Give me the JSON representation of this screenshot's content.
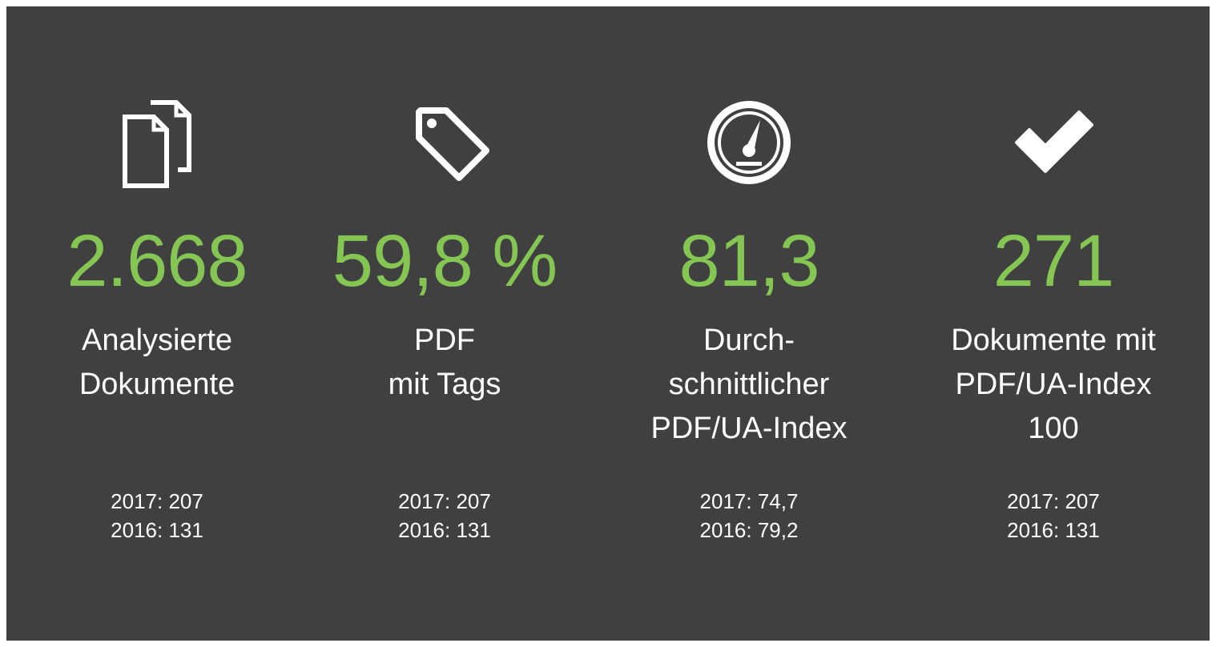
{
  "items": [
    {
      "value": "2.668",
      "label": [
        "Analysierte",
        "Dokumente"
      ],
      "history": [
        "2017: 207",
        "2016: 131"
      ]
    },
    {
      "value": "59,8 %",
      "label": [
        "PDF",
        "mit Tags"
      ],
      "history": [
        "2017: 207",
        "2016: 131"
      ]
    },
    {
      "value": "81,3",
      "label": [
        "Durch-",
        "schnittlicher",
        "PDF/UA-Index"
      ],
      "history": [
        "2017: 74,7",
        "2016: 79,2"
      ]
    },
    {
      "value": "271",
      "label": [
        "Dokumente mit",
        "PDF/UA-Index",
        "100"
      ],
      "history": [
        "2017: 207",
        "2016: 131"
      ]
    }
  ]
}
